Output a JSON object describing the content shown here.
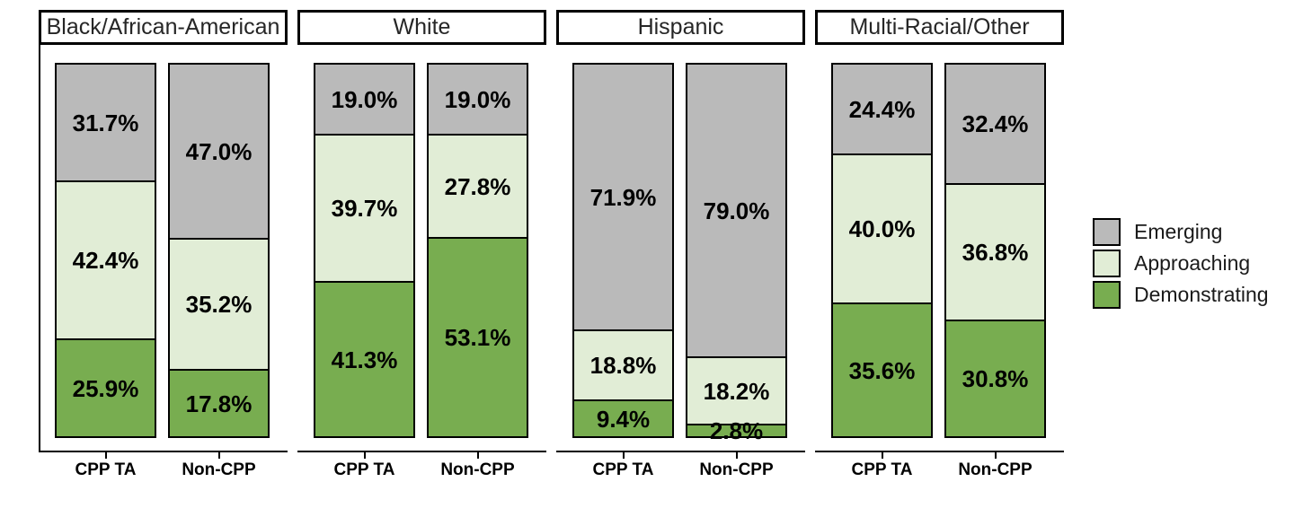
{
  "chart_data": {
    "type": "bar",
    "stacked": true,
    "orientation": "vertical",
    "grid": false,
    "ylim": [
      0,
      100
    ],
    "value_unit": "percent",
    "legend_position": "right",
    "x_categories": [
      "CPP TA",
      "Non-CPP"
    ],
    "series": [
      {
        "name": "Emerging",
        "color": "#bababa"
      },
      {
        "name": "Approaching",
        "color": "#e1edd6"
      },
      {
        "name": "Demonstrating",
        "color": "#78ad50"
      }
    ],
    "facets": [
      {
        "label": "Black/African-American",
        "bars": [
          {
            "category": "CPP TA",
            "segments": [
              {
                "series": "Emerging",
                "value": 31.7,
                "label": "31.7%"
              },
              {
                "series": "Approaching",
                "value": 42.4,
                "label": "42.4%"
              },
              {
                "series": "Demonstrating",
                "value": 25.9,
                "label": "25.9%"
              }
            ]
          },
          {
            "category": "Non-CPP",
            "segments": [
              {
                "series": "Emerging",
                "value": 47.0,
                "label": "47.0%"
              },
              {
                "series": "Approaching",
                "value": 35.2,
                "label": "35.2%"
              },
              {
                "series": "Demonstrating",
                "value": 17.8,
                "label": "17.8%"
              }
            ]
          }
        ]
      },
      {
        "label": "White",
        "bars": [
          {
            "category": "CPP TA",
            "segments": [
              {
                "series": "Emerging",
                "value": 19.0,
                "label": "19.0%"
              },
              {
                "series": "Approaching",
                "value": 39.7,
                "label": "39.7%"
              },
              {
                "series": "Demonstrating",
                "value": 41.3,
                "label": "41.3%"
              }
            ]
          },
          {
            "category": "Non-CPP",
            "segments": [
              {
                "series": "Emerging",
                "value": 19.0,
                "label": "19.0%"
              },
              {
                "series": "Approaching",
                "value": 27.8,
                "label": "27.8%"
              },
              {
                "series": "Demonstrating",
                "value": 53.1,
                "label": "53.1%"
              }
            ]
          }
        ]
      },
      {
        "label": "Hispanic",
        "bars": [
          {
            "category": "CPP TA",
            "segments": [
              {
                "series": "Emerging",
                "value": 71.9,
                "label": "71.9%"
              },
              {
                "series": "Approaching",
                "value": 18.8,
                "label": "18.8%"
              },
              {
                "series": "Demonstrating",
                "value": 9.4,
                "label": "9.4%"
              }
            ]
          },
          {
            "category": "Non-CPP",
            "segments": [
              {
                "series": "Emerging",
                "value": 79.0,
                "label": "79.0%"
              },
              {
                "series": "Approaching",
                "value": 18.2,
                "label": "18.2%"
              },
              {
                "series": "Demonstrating",
                "value": 2.8,
                "label": "2.8%"
              }
            ]
          }
        ]
      },
      {
        "label": "Multi-Racial/Other",
        "bars": [
          {
            "category": "CPP TA",
            "segments": [
              {
                "series": "Emerging",
                "value": 24.4,
                "label": "24.4%"
              },
              {
                "series": "Approaching",
                "value": 40.0,
                "label": "40.0%"
              },
              {
                "series": "Demonstrating",
                "value": 35.6,
                "label": "35.6%"
              }
            ]
          },
          {
            "category": "Non-CPP",
            "segments": [
              {
                "series": "Emerging",
                "value": 32.4,
                "label": "32.4%"
              },
              {
                "series": "Approaching",
                "value": 36.8,
                "label": "36.8%"
              },
              {
                "series": "Demonstrating",
                "value": 30.8,
                "label": "30.8%"
              }
            ]
          }
        ]
      }
    ]
  }
}
